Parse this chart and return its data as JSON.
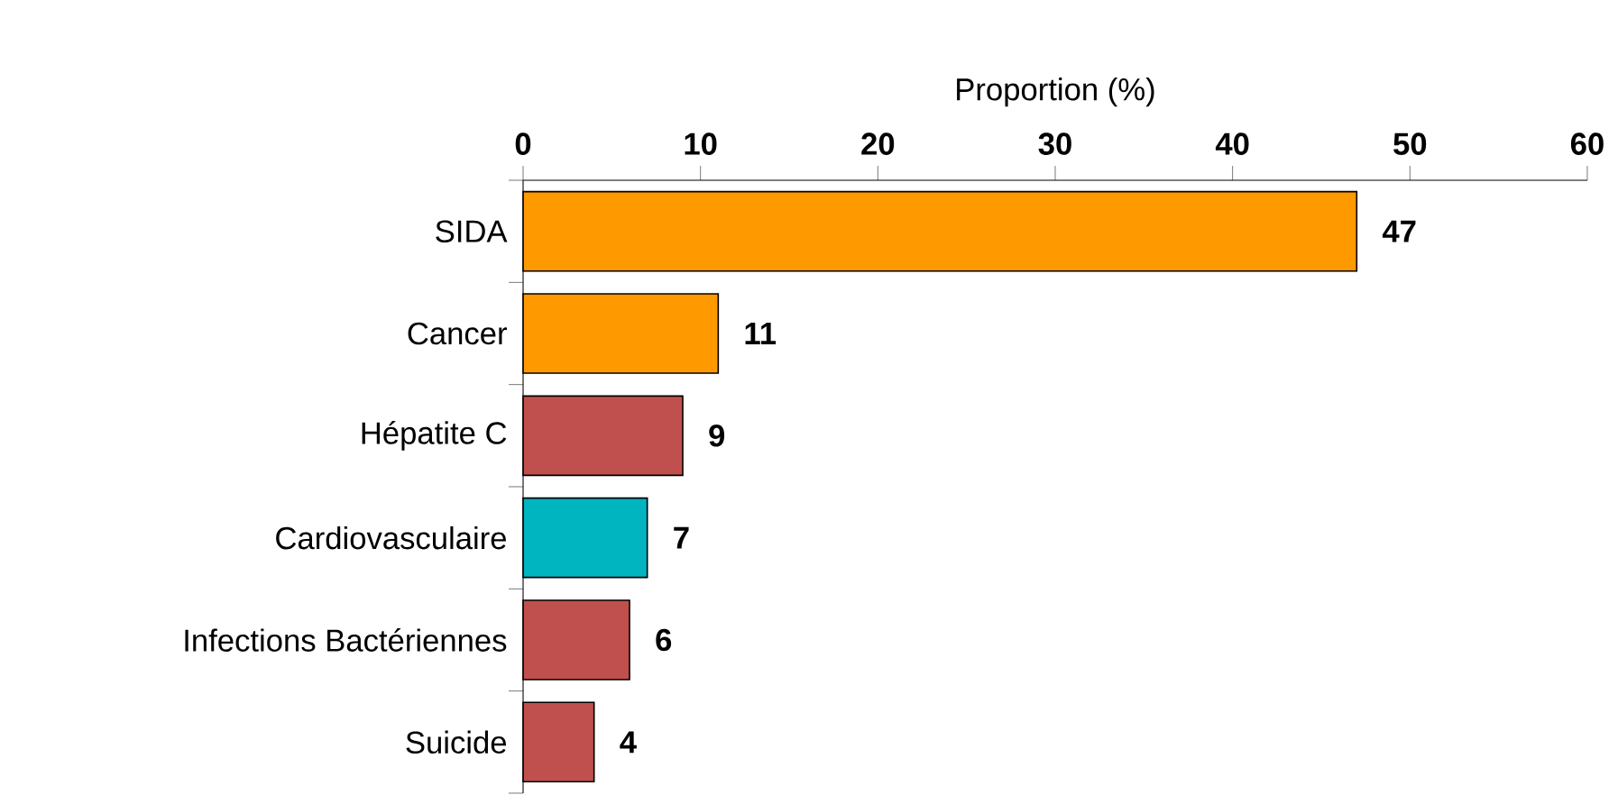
{
  "chart_data": {
    "type": "bar",
    "orientation": "horizontal",
    "xlabel": "Proportion (%)",
    "categories": [
      "SIDA",
      "Cancer",
      "Hépatite C",
      "Cardiovasculaire",
      "Infections Bactériennes",
      "Suicide"
    ],
    "values": [
      47,
      11,
      9,
      7,
      6,
      4
    ],
    "colors": [
      "#ff9900",
      "#ff9900",
      "#c0504d",
      "#00b4c0",
      "#c0504d",
      "#c0504d"
    ],
    "xlim": [
      0,
      60
    ],
    "xticks": [
      0,
      10,
      20,
      30,
      40,
      50,
      60
    ],
    "data_labels": true
  }
}
